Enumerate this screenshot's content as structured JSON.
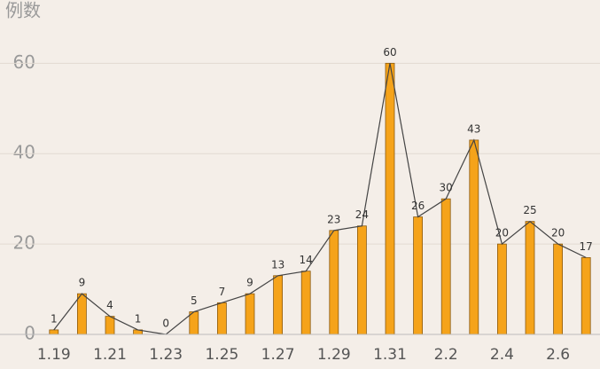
{
  "chart_data": {
    "type": "bar-line",
    "y_label": "例数",
    "categories": [
      "1.19",
      null,
      "1.21",
      null,
      "1.23",
      null,
      "1.25",
      null,
      "1.27",
      null,
      "1.29",
      null,
      "1.31",
      null,
      "2.2",
      null,
      "2.4",
      null,
      "2.6",
      null
    ],
    "values": [
      1,
      9,
      4,
      1,
      0,
      5,
      7,
      9,
      13,
      14,
      23,
      24,
      60,
      26,
      30,
      43,
      20,
      25,
      20,
      17
    ],
    "color": "#f5a31a",
    "line_color": "#444444",
    "ylim": [
      0,
      74
    ],
    "yticks": [
      0,
      20,
      40,
      60
    ],
    "grid": true
  }
}
